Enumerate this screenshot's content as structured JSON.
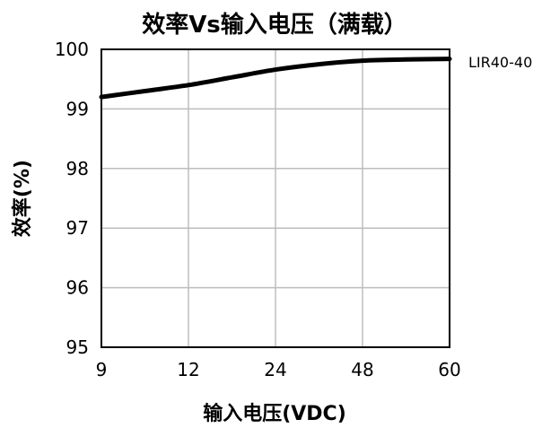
{
  "chart_data": {
    "type": "line",
    "title": "效率Vs输入电压（满载）",
    "xlabel": "输入电压(VDC)",
    "ylabel": "效率(%)",
    "categories": [
      "9",
      "12",
      "24",
      "48",
      "60"
    ],
    "ylim": [
      95,
      100
    ],
    "yticks": [
      "95",
      "96",
      "97",
      "98",
      "99",
      "100"
    ],
    "grid": true,
    "legend": "right",
    "series": [
      {
        "name": "LIR40-40",
        "x": [
          0,
          0.5,
          1,
          1.5,
          2,
          2.5,
          3,
          3.5,
          4
        ],
        "y": [
          99.2,
          99.3,
          99.4,
          99.53,
          99.66,
          99.75,
          99.81,
          99.83,
          99.84
        ]
      }
    ]
  }
}
